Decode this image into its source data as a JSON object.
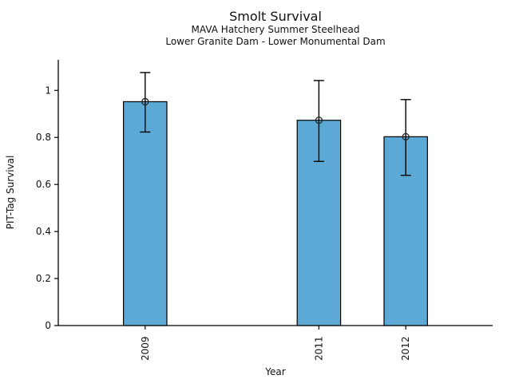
{
  "chart_data": {
    "type": "bar",
    "title": "Smolt Survival",
    "subtitle": [
      "MAVA Hatchery Summer Steelhead",
      "Lower Granite Dam - Lower Monumental Dam"
    ],
    "xlabel": "Year",
    "ylabel": "PIT-Tag Survival",
    "categories": [
      "2009",
      "2011",
      "2012"
    ],
    "x": [
      2009,
      2011,
      2012
    ],
    "values": [
      0.952,
      0.873,
      0.803
    ],
    "error_low": [
      0.823,
      0.698,
      0.639
    ],
    "error_high": [
      1.076,
      1.042,
      0.961
    ],
    "yticks": [
      0,
      0.2,
      0.4,
      0.6,
      0.8,
      1
    ],
    "ytick_labels": [
      "0",
      "0.2",
      "0.4",
      "0.6",
      "0.8",
      "1"
    ],
    "xlim": [
      2008,
      2013
    ],
    "ylim": [
      0,
      1.13
    ],
    "bar_width_years": 0.5,
    "bar_color": "#5BA9D4",
    "bar_edge_color": "#000000",
    "error_color": "#000000",
    "marker": "open-circle",
    "grid": false,
    "legend_position": "none"
  }
}
